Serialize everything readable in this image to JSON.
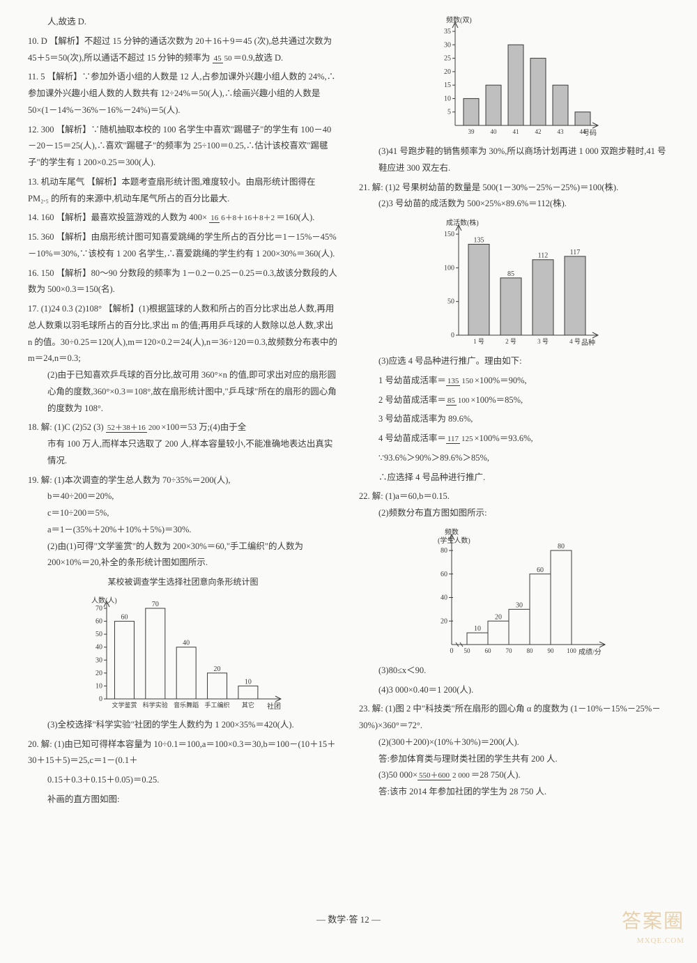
{
  "q9_tail": "人,故选 D.",
  "q10": {
    "num": "10. D",
    "text": "【解析】不超过 15 分钟的通话次数为 20＋16＋9＝45 (次),总共通过次数为 45＋5＝50(次),所以通话不超过 15 分钟的频率为",
    "frac_n": "45",
    "frac_d": "50",
    "tail": "＝0.9,故选 D."
  },
  "q11": {
    "num": "11. 5",
    "text": "【解析】∵参加外语小组的人数是 12 人,占参加课外兴趣小组人数的 24%,∴参加课外兴趣小组人数的人数共有 12÷24%＝50(人),∴绘画兴趣小组的人数是 50×(1－14%－36%－16%－24%)＝5(人)."
  },
  "q12": {
    "num": "12. 300",
    "text": "【解析】∵随机抽取本校的 100 名学生中喜欢\"踢毽子\"的学生有 100－40－20－15＝25(人),∴喜欢\"踢毽子\"的频率为 25÷100＝0.25,∴估计该校喜欢\"踢毽子\"的学生有 1 200×0.25＝300(人)."
  },
  "q13": {
    "num": "13. 机动车尾气",
    "text": "【解析】本题考查扇形统计图,难度较小。由扇形统计图得在 PM₂.₅ 的所有的来源中,机动车尾气所占的百分比最大."
  },
  "q14": {
    "num": "14. 160",
    "pre": "【解析】最喜欢投篮游戏的人数为 400×",
    "frac_n": "16",
    "frac_d": "6＋8＋16＋8＋2",
    "tail": "＝160(人)."
  },
  "q15": {
    "num": "15. 360",
    "text": "【解析】由扇形统计图可知喜爱跳绳的学生所占的百分比＝1－15%－45%－10%＝30%,∵该校有 1 200 名学生,∴喜爱跳绳的学生约有 1 200×30%＝360(人)."
  },
  "q16": {
    "num": "16. 150",
    "text": "【解析】80～90 分数段的频率为 1－0.2－0.25－0.25＝0.3,故该分数段的人数为 500×0.3＝150(名)."
  },
  "q17": {
    "num": "17. (1)24  0.3  (2)108°",
    "text": "【解析】(1)根据篮球的人数和所占的百分比求出总人数,再用总人数乘以羽毛球所占的百分比,求出 m 的值;再用乒乓球的人数除以总人数,求出 n 的值。30÷0.25＝120(人),m＝120×0.2＝24(人),n＝36÷120＝0.3,故频数分布表中的 m＝24,n＝0.3;",
    "p2": "(2)由于已知喜欢乒乓球的百分比,故可用 360°×n 的值,即可求出对应的扇形圆心角的度数,360°×0.3＝108°,故在扇形统计图中,\"乒乓球\"所在的扇形的圆心角的度数为 108°."
  },
  "q18": {
    "num": "18. 解:",
    "parts": "(1)C  (2)52  (3)",
    "frac_n": "52＋38＋16",
    "frac_d": "200",
    "mid": "×100＝53 万;(4)由于全",
    "tail": "市有 100 万人,而样本只选取了 200 人,样本容量较小,不能准确地表达出真实情况."
  },
  "q19": {
    "num": "19. 解:",
    "p1": "(1)本次调查的学生总人数为 70÷35%＝200(人),",
    "p2": "b＝40÷200＝20%,",
    "p3": "c＝10÷200＝5%,",
    "p4": "a＝1－(35%＋20%＋10%＋5%)＝30%.",
    "p5": "(2)由(1)可得\"文学鉴赏\"的人数为 200×30%＝60,\"手工编织\"的人数为 200×10%＝20,补全的条形统计图如图所示.",
    "chart_title": "某校被调查学生选择社团意向条形统计图",
    "chart": {
      "ylabel": "人数(人)",
      "xlabel": "社团",
      "cats": [
        "文学鉴赏",
        "科学实验",
        "音乐舞蹈",
        "手工编织",
        "其它"
      ],
      "values": [
        60,
        70,
        40,
        20,
        10
      ],
      "yticks": [
        0,
        10,
        20,
        30,
        40,
        50,
        60,
        70
      ],
      "value_labels": [
        "60",
        "70",
        "40",
        "20",
        "10"
      ]
    },
    "p6": "(3)全校选择\"科学实验\"社团的学生人数约为 1 200×35%＝420(人)."
  },
  "q20": {
    "num": "20. 解:",
    "p1": "(1)由已知可得样本容量为 10÷0.1＝100,a＝100×0.3＝30,b＝100－(10＋15＋30＋15＋5)＝25,c＝1－(0.1＋",
    "p1b": "0.15＋0.3＋0.15＋0.05)＝0.25.",
    "p2": "补画的直方图如图:",
    "chart": {
      "ylabel": "频数(双)",
      "xlabel": "号码",
      "cats": [
        "39",
        "40",
        "41",
        "42",
        "43",
        "44"
      ],
      "values": [
        10,
        15,
        30,
        25,
        15,
        5
      ],
      "yticks": [
        5,
        10,
        15,
        20,
        25,
        30,
        35
      ]
    },
    "p3": "(3)41 号跑步鞋的销售频率为 30%,所以商场计划再进 1 000 双跑步鞋时,41 号鞋应进 300 双左右."
  },
  "q21": {
    "num": "21. 解:",
    "p1": "(1)2 号果树幼苗的数量是 500(1－30%－25%－25%)＝100(株).",
    "p2": "(2)3 号幼苗的成活数为 500×25%×89.6%＝112(株).",
    "chart": {
      "ylabel": "成活数(株)",
      "xlabel": "品种",
      "cats": [
        "1 号",
        "2 号",
        "3 号",
        "4 号"
      ],
      "values": [
        135,
        85,
        112,
        117
      ],
      "value_labels": [
        "135",
        "85",
        "112",
        "117"
      ],
      "yticks": [
        0,
        50,
        100,
        150
      ]
    },
    "p3": "(3)应选 4 号品种进行推广。理由如下:",
    "l1a": "1 号幼苗成活率＝",
    "l1_fn": "135",
    "l1_fd": "150",
    "l1b": "×100%＝90%,",
    "l2a": "2 号幼苗成活率＝",
    "l2_fn": "85",
    "l2_fd": "100",
    "l2b": "×100%＝85%,",
    "l3": "3 号幼苗成活率为 89.6%,",
    "l4a": "4 号幼苗成活率＝",
    "l4_fn": "117",
    "l4_fd": "125",
    "l4b": "×100%＝93.6%,",
    "l5": "∵93.6%＞90%＞89.6%＞85%,",
    "l6": "∴应选择 4 号品种进行推广."
  },
  "q22": {
    "num": "22. 解:",
    "p1": "(1)a＝60,b＝0.15.",
    "p2": "(2)频数分布直方图如图所示:",
    "chart": {
      "ylabel_l1": "频数",
      "ylabel_l2": "(学生人数)",
      "xlabel": "成绩/分",
      "edges": [
        "0",
        "50",
        "60",
        "70",
        "80",
        "90",
        "100"
      ],
      "values": [
        10,
        20,
        30,
        60,
        80
      ],
      "value_labels": [
        "10",
        "20",
        "30",
        "60",
        "80"
      ],
      "yticks": [
        20,
        40,
        60,
        80
      ]
    },
    "p3": "(3)80≤x＜90.",
    "p4": "(4)3 000×0.40＝1 200(人)."
  },
  "q23": {
    "num": "23. 解:",
    "p1": "(1)图 2 中\"科技类\"所在扇形的圆心角 α 的度数为 (1－10%－15%－25%－30%)×360°＝72°.",
    "p2": "(2)(300＋200)×(10%＋30%)＝200(人).",
    "p3": "答:参加体育类与理财类社团的学生共有 200 人.",
    "p4a": "(3)50 000×",
    "p4_fn": "550＋600",
    "p4_fd": "2 000",
    "p4b": "＝28 750(人).",
    "p5": "答:该市 2014 年参加社团的学生为 28 750 人."
  },
  "footer": "— 数学·答 12 —",
  "watermark": "答案圈",
  "watermark_sub": "MXQE.COM"
}
